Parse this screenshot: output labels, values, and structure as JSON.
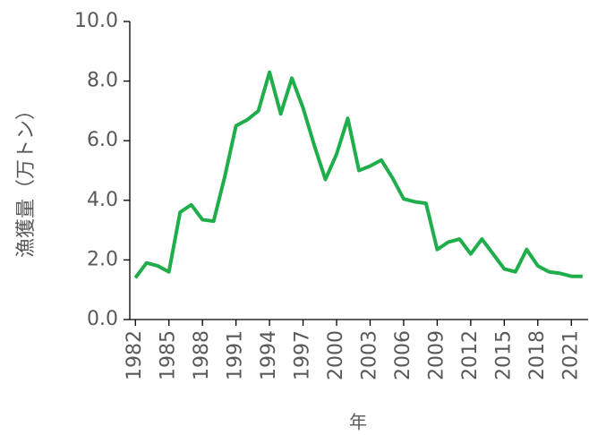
{
  "chart_data": {
    "type": "line",
    "x_label": "年",
    "y_label": "漁獲量（万トン）",
    "x": [
      1982,
      1983,
      1984,
      1985,
      1986,
      1987,
      1988,
      1989,
      1990,
      1991,
      1992,
      1993,
      1994,
      1995,
      1996,
      1997,
      1998,
      1999,
      2000,
      2001,
      2002,
      2003,
      2004,
      2005,
      2006,
      2007,
      2008,
      2009,
      2010,
      2011,
      2012,
      2013,
      2014,
      2015,
      2016,
      2017,
      2018,
      2019,
      2020,
      2021,
      2022
    ],
    "series": [
      {
        "color": "#1fae4b",
        "values": [
          1.4,
          1.9,
          1.8,
          1.6,
          3.6,
          3.85,
          3.35,
          3.3,
          4.8,
          6.5,
          6.7,
          7.0,
          8.3,
          6.9,
          8.1,
          7.1,
          5.85,
          4.7,
          5.55,
          6.75,
          5.0,
          5.15,
          5.35,
          4.75,
          4.05,
          3.95,
          3.9,
          2.35,
          2.6,
          2.7,
          2.2,
          2.7,
          2.2,
          1.7,
          1.6,
          2.35,
          1.8,
          1.6,
          1.55,
          1.45,
          1.45
        ]
      }
    ],
    "xlim": [
      1981.5,
      2022.5
    ],
    "xticks": [
      1982,
      1985,
      1988,
      1991,
      1994,
      1997,
      2000,
      2003,
      2006,
      2009,
      2012,
      2015,
      2018,
      2021
    ],
    "ylim": [
      0,
      10
    ],
    "yticks": [
      {
        "value": 0,
        "label": "0.0"
      },
      {
        "value": 2,
        "label": "2.0"
      },
      {
        "value": 4,
        "label": "4.0"
      },
      {
        "value": 6,
        "label": "6.0"
      },
      {
        "value": 8,
        "label": "8.0"
      },
      {
        "value": 10,
        "label": "10.0"
      }
    ]
  }
}
